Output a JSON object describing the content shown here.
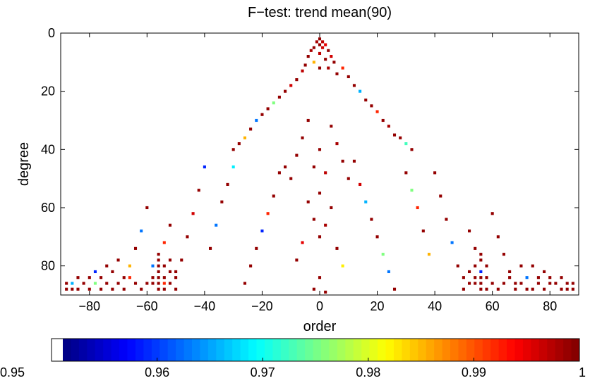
{
  "chart_data": {
    "type": "heatmap",
    "title": "F−test: trend mean(90)",
    "xlabel": "order",
    "ylabel": "degree",
    "xlim": [
      -90,
      90
    ],
    "ylim": [
      0,
      90
    ],
    "y_reversed": true,
    "x_ticks": [
      -80,
      -60,
      -40,
      -20,
      0,
      20,
      40,
      60,
      80
    ],
    "x_tick_labels": [
      "−80",
      "−60",
      "−40",
      "−20",
      "0",
      "20",
      "40",
      "60",
      "80"
    ],
    "y_ticks": [
      0,
      20,
      40,
      60,
      80
    ],
    "y_tick_labels": [
      "0",
      "20",
      "40",
      "60",
      "80"
    ],
    "grid": false,
    "colorbar": {
      "position": "bottom",
      "colormap": "jet",
      "range": [
        0.95,
        1
      ],
      "ticks": [
        0.95,
        0.96,
        0.97,
        0.98,
        0.99,
        1
      ],
      "tick_labels": [
        "0.95",
        "0.96",
        "0.97",
        "0.98",
        "0.99",
        "1"
      ],
      "below_min_color": "#ffffff"
    },
    "cells_note_columns": [
      "order",
      "degree",
      "significance"
    ],
    "cells": [
      [
        0,
        2,
        0.999
      ],
      [
        -1,
        3,
        0.998
      ],
      [
        1,
        3,
        0.997
      ],
      [
        0,
        4,
        0.999
      ],
      [
        2,
        4,
        0.995
      ],
      [
        -2,
        5,
        0.999
      ],
      [
        1,
        5,
        0.996
      ],
      [
        3,
        6,
        0.999
      ],
      [
        -3,
        6,
        0.998
      ],
      [
        0,
        7,
        0.997
      ],
      [
        -4,
        8,
        0.999
      ],
      [
        4,
        8,
        0.996
      ],
      [
        2,
        9,
        0.999
      ],
      [
        -2,
        10,
        0.985
      ],
      [
        5,
        10,
        0.999
      ],
      [
        -5,
        11,
        0.999
      ],
      [
        0,
        12,
        0.999
      ],
      [
        3,
        12,
        0.998
      ],
      [
        -6,
        13,
        0.997
      ],
      [
        6,
        14,
        0.999
      ],
      [
        8,
        12,
        0.992
      ],
      [
        -8,
        16,
        0.999
      ],
      [
        10,
        15,
        0.999
      ],
      [
        -10,
        18,
        0.996
      ],
      [
        12,
        18,
        0.999
      ],
      [
        -12,
        20,
        0.999
      ],
      [
        14,
        20,
        0.965
      ],
      [
        -14,
        22,
        0.999
      ],
      [
        16,
        23,
        0.999
      ],
      [
        -16,
        24,
        0.975
      ],
      [
        18,
        25,
        0.999
      ],
      [
        -18,
        26,
        0.999
      ],
      [
        20,
        27,
        0.992
      ],
      [
        -20,
        28,
        0.999
      ],
      [
        22,
        30,
        0.999
      ],
      [
        -22,
        30,
        0.962
      ],
      [
        24,
        32,
        0.998
      ],
      [
        -24,
        33,
        0.999
      ],
      [
        26,
        35,
        0.999
      ],
      [
        -26,
        36,
        0.985
      ],
      [
        28,
        36,
        0.999
      ],
      [
        -28,
        38,
        0.999
      ],
      [
        30,
        38,
        0.972
      ],
      [
        -30,
        40,
        0.999
      ],
      [
        32,
        40,
        0.999
      ],
      [
        -4,
        30,
        0.999
      ],
      [
        4,
        32,
        0.999
      ],
      [
        -6,
        36,
        0.999
      ],
      [
        6,
        38,
        0.998
      ],
      [
        0,
        40,
        0.999
      ],
      [
        -8,
        42,
        0.999
      ],
      [
        8,
        44,
        0.999
      ],
      [
        -2,
        46,
        0.999
      ],
      [
        2,
        48,
        0.997
      ],
      [
        -10,
        50,
        0.999
      ],
      [
        10,
        50,
        0.999
      ],
      [
        -12,
        46,
        0.999
      ],
      [
        12,
        44,
        0.999
      ],
      [
        0,
        55,
        0.999
      ],
      [
        -4,
        58,
        0.999
      ],
      [
        4,
        60,
        0.999
      ],
      [
        -2,
        64,
        0.999
      ],
      [
        2,
        66,
        0.998
      ],
      [
        0,
        70,
        0.999
      ],
      [
        -6,
        72,
        0.995
      ],
      [
        6,
        74,
        0.999
      ],
      [
        -8,
        78,
        0.999
      ],
      [
        8,
        80,
        0.982
      ],
      [
        0,
        84,
        0.999
      ],
      [
        -2,
        88,
        0.999
      ],
      [
        2,
        89,
        0.999
      ],
      [
        -14,
        48,
        0.999
      ],
      [
        14,
        52,
        0.996
      ],
      [
        -16,
        56,
        0.999
      ],
      [
        16,
        58,
        0.965
      ],
      [
        -18,
        62,
        0.992
      ],
      [
        18,
        64,
        0.999
      ],
      [
        -20,
        68,
        0.958
      ],
      [
        20,
        70,
        0.999
      ],
      [
        -22,
        74,
        0.999
      ],
      [
        22,
        76,
        0.975
      ],
      [
        -24,
        80,
        0.999
      ],
      [
        24,
        82,
        0.962
      ],
      [
        -26,
        86,
        0.999
      ],
      [
        26,
        88,
        0.999
      ],
      [
        -30,
        46,
        0.968
      ],
      [
        30,
        48,
        0.999
      ],
      [
        -32,
        52,
        0.999
      ],
      [
        32,
        54,
        0.975
      ],
      [
        -34,
        58,
        0.999
      ],
      [
        34,
        60,
        0.992
      ],
      [
        -36,
        66,
        0.962
      ],
      [
        36,
        68,
        0.999
      ],
      [
        -38,
        74,
        0.999
      ],
      [
        38,
        76,
        0.985
      ],
      [
        -40,
        46,
        0.958
      ],
      [
        40,
        48,
        0.999
      ],
      [
        -42,
        54,
        0.999
      ],
      [
        42,
        56,
        0.999
      ],
      [
        -44,
        62,
        0.996
      ],
      [
        44,
        64,
        0.999
      ],
      [
        -46,
        70,
        0.999
      ],
      [
        46,
        72,
        0.962
      ],
      [
        -48,
        78,
        0.999
      ],
      [
        48,
        80,
        0.999
      ],
      [
        -50,
        82,
        0.999
      ],
      [
        50,
        84,
        0.999
      ],
      [
        -52,
        66,
        0.999
      ],
      [
        52,
        68,
        0.999
      ],
      [
        -54,
        72,
        0.992
      ],
      [
        54,
        74,
        0.999
      ],
      [
        -56,
        80,
        0.999
      ],
      [
        56,
        82,
        0.958
      ],
      [
        -58,
        86,
        0.999
      ],
      [
        58,
        88,
        0.999
      ],
      [
        -60,
        60,
        0.999
      ],
      [
        60,
        62,
        0.999
      ],
      [
        -62,
        68,
        0.962
      ],
      [
        62,
        70,
        0.999
      ],
      [
        -64,
        74,
        0.999
      ],
      [
        64,
        76,
        0.999
      ],
      [
        -66,
        80,
        0.985
      ],
      [
        66,
        82,
        0.999
      ],
      [
        -68,
        84,
        0.999
      ],
      [
        68,
        86,
        0.999
      ],
      [
        -70,
        78,
        0.999
      ],
      [
        70,
        80,
        0.999
      ],
      [
        -72,
        82,
        0.999
      ],
      [
        72,
        84,
        0.962
      ],
      [
        -74,
        86,
        0.999
      ],
      [
        74,
        88,
        0.999
      ],
      [
        -76,
        88,
        0.999
      ],
      [
        76,
        86,
        0.999
      ],
      [
        -78,
        86,
        0.975
      ],
      [
        78,
        88,
        0.999
      ],
      [
        -80,
        88,
        0.999
      ],
      [
        80,
        86,
        0.999
      ],
      [
        -84,
        88,
        0.999
      ],
      [
        84,
        88,
        0.999
      ],
      [
        -86,
        86,
        0.965
      ],
      [
        86,
        88,
        0.999
      ],
      [
        -88,
        88,
        0.999
      ],
      [
        88,
        88,
        0.999
      ],
      [
        -56,
        76,
        0.999
      ],
      [
        -56,
        78,
        0.999
      ],
      [
        -56,
        82,
        0.999
      ],
      [
        -56,
        84,
        0.999
      ],
      [
        -56,
        86,
        0.999
      ],
      [
        -56,
        88,
        0.999
      ],
      [
        -54,
        80,
        0.999
      ],
      [
        -54,
        84,
        0.999
      ],
      [
        -54,
        86,
        0.992
      ],
      [
        -54,
        88,
        0.999
      ],
      [
        -52,
        78,
        0.999
      ],
      [
        -52,
        82,
        0.999
      ],
      [
        -52,
        86,
        0.999
      ],
      [
        -50,
        84,
        0.999
      ],
      [
        -50,
        88,
        0.999
      ],
      [
        -58,
        80,
        0.962
      ],
      [
        -58,
        84,
        0.999
      ],
      [
        -60,
        86,
        0.999
      ],
      [
        -62,
        88,
        0.999
      ],
      [
        -64,
        86,
        0.999
      ],
      [
        -66,
        84,
        0.992
      ],
      [
        -68,
        88,
        0.999
      ],
      [
        -70,
        86,
        0.999
      ],
      [
        -72,
        88,
        0.999
      ],
      [
        -74,
        80,
        0.999
      ],
      [
        -76,
        84,
        0.999
      ],
      [
        -78,
        82,
        0.958
      ],
      [
        -80,
        84,
        0.999
      ],
      [
        -82,
        86,
        0.999
      ],
      [
        -84,
        84,
        0.999
      ],
      [
        -86,
        88,
        0.999
      ],
      [
        -88,
        86,
        0.999
      ],
      [
        56,
        76,
        0.999
      ],
      [
        56,
        78,
        0.999
      ],
      [
        56,
        84,
        0.999
      ],
      [
        56,
        86,
        0.999
      ],
      [
        56,
        88,
        0.999
      ],
      [
        54,
        80,
        0.999
      ],
      [
        54,
        84,
        0.999
      ],
      [
        54,
        86,
        0.999
      ],
      [
        52,
        82,
        0.999
      ],
      [
        52,
        86,
        0.999
      ],
      [
        50,
        88,
        0.999
      ],
      [
        58,
        80,
        0.999
      ],
      [
        58,
        84,
        0.999
      ],
      [
        60,
        86,
        0.999
      ],
      [
        62,
        88,
        0.999
      ],
      [
        64,
        86,
        0.999
      ],
      [
        66,
        84,
        0.999
      ],
      [
        68,
        88,
        0.999
      ],
      [
        70,
        86,
        0.999
      ],
      [
        72,
        88,
        0.999
      ],
      [
        74,
        80,
        0.999
      ],
      [
        76,
        84,
        0.999
      ],
      [
        78,
        82,
        0.999
      ],
      [
        80,
        84,
        0.999
      ],
      [
        82,
        86,
        0.999
      ],
      [
        84,
        84,
        0.999
      ],
      [
        86,
        86,
        0.999
      ],
      [
        88,
        86,
        0.999
      ]
    ]
  }
}
